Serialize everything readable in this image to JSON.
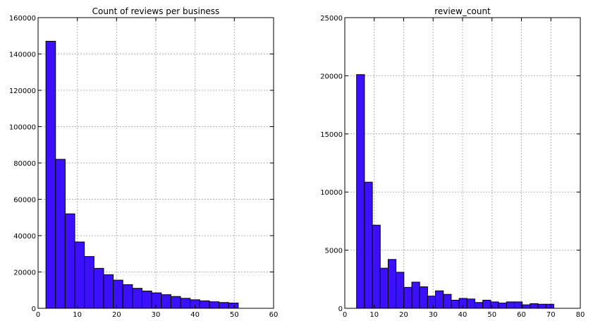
{
  "chart_data": [
    {
      "type": "bar",
      "title": "Count of reviews per business",
      "xlabel": "",
      "ylabel": "",
      "xlim": [
        0,
        60
      ],
      "ylim": [
        0,
        160000
      ],
      "xticks": [
        0,
        10,
        20,
        30,
        40,
        50,
        60
      ],
      "yticks": [
        0,
        20000,
        40000,
        60000,
        80000,
        100000,
        120000,
        140000,
        160000
      ],
      "grid": true,
      "bar_color": "#3d0fff",
      "bin_edges": [
        2,
        4.45,
        6.9,
        9.35,
        11.8,
        14.25,
        16.7,
        19.15,
        21.6,
        24.05,
        26.5,
        28.95,
        31.4,
        33.85,
        36.3,
        38.75,
        41.2,
        43.65,
        46.1,
        48.55,
        51
      ],
      "values": [
        147000,
        82000,
        52000,
        36500,
        28500,
        22000,
        18500,
        15500,
        13000,
        11000,
        9500,
        8500,
        7500,
        6500,
        5500,
        4700,
        4100,
        3600,
        3200,
        2900
      ]
    },
    {
      "type": "bar",
      "title": "review_count",
      "xlabel": "",
      "ylabel": "",
      "xlim": [
        0,
        80
      ],
      "ylim": [
        0,
        25000
      ],
      "xticks": [
        0,
        10,
        20,
        30,
        40,
        50,
        60,
        70,
        80
      ],
      "yticks": [
        0,
        5000,
        10000,
        15000,
        20000,
        25000
      ],
      "grid": true,
      "bar_color": "#3d0fff",
      "bin_edges": [
        4,
        6.68,
        9.36,
        12.04,
        14.72,
        17.4,
        20.08,
        22.76,
        25.44,
        28.12,
        30.8,
        33.48,
        36.16,
        38.84,
        41.52,
        44.2,
        46.88,
        49.56,
        52.24,
        54.92,
        57.6,
        60.28,
        62.96,
        65.64,
        68.32,
        71
      ],
      "values": [
        20100,
        10850,
        7150,
        3450,
        4200,
        3100,
        1800,
        2250,
        1850,
        1050,
        1500,
        1200,
        700,
        850,
        800,
        500,
        700,
        550,
        450,
        550,
        550,
        300,
        400,
        350,
        350
      ]
    }
  ]
}
